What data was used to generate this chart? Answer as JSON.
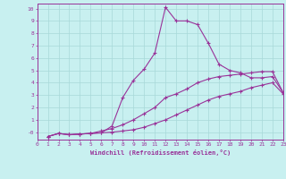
{
  "xlabel": "Windchill (Refroidissement éolien,°C)",
  "background_color": "#c8f0f0",
  "grid_color": "#a8d8d8",
  "line_color": "#993399",
  "xlim": [
    0,
    23
  ],
  "ylim": [
    -0.6,
    10.4
  ],
  "xticks": [
    0,
    1,
    2,
    3,
    4,
    5,
    6,
    7,
    8,
    9,
    10,
    11,
    12,
    13,
    14,
    15,
    16,
    17,
    18,
    19,
    20,
    21,
    22,
    23
  ],
  "yticks": [
    0,
    1,
    2,
    3,
    4,
    5,
    6,
    7,
    8,
    9,
    10
  ],
  "line1_x": [
    1,
    2,
    3,
    4,
    5,
    6,
    7,
    8,
    9,
    10,
    11,
    12,
    13,
    14,
    15,
    16,
    17,
    18,
    19,
    20,
    21,
    22,
    23
  ],
  "line1_y": [
    -0.35,
    -0.1,
    -0.2,
    -0.15,
    -0.1,
    -0.05,
    0.0,
    0.1,
    0.2,
    0.4,
    0.7,
    1.0,
    1.4,
    1.8,
    2.2,
    2.6,
    2.9,
    3.1,
    3.3,
    3.6,
    3.8,
    4.0,
    3.1
  ],
  "line2_x": [
    1,
    2,
    3,
    4,
    5,
    6,
    7,
    8,
    9,
    10,
    11,
    12,
    13,
    14,
    15,
    16,
    17,
    18,
    19,
    20,
    21,
    22,
    23
  ],
  "line2_y": [
    -0.35,
    -0.1,
    -0.2,
    -0.15,
    -0.1,
    0.1,
    0.3,
    0.6,
    1.0,
    1.5,
    2.0,
    2.8,
    3.1,
    3.5,
    4.0,
    4.3,
    4.5,
    4.6,
    4.7,
    4.8,
    4.9,
    4.9,
    3.2
  ],
  "line3_x": [
    1,
    2,
    3,
    4,
    5,
    6,
    7,
    8,
    9,
    10,
    11,
    12,
    13,
    14,
    15,
    16,
    17,
    18,
    19,
    20,
    21,
    22,
    23
  ],
  "line3_y": [
    -0.35,
    -0.1,
    -0.2,
    -0.15,
    -0.1,
    -0.05,
    0.5,
    2.8,
    4.2,
    5.1,
    6.4,
    10.1,
    9.0,
    9.0,
    8.7,
    7.2,
    5.5,
    5.0,
    4.8,
    4.4,
    4.4,
    4.5,
    3.2
  ]
}
